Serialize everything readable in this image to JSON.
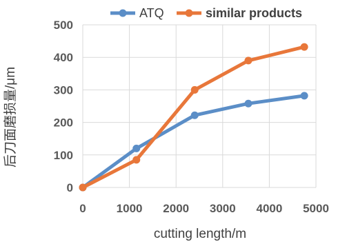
{
  "chart_data": {
    "type": "line",
    "title": "",
    "xlabel": "cutting length/m",
    "ylabel": "后刀面磨损量/μm",
    "xlim": [
      0,
      5000
    ],
    "ylim": [
      0,
      500
    ],
    "xticks": [
      "0",
      "1000",
      "2000",
      "3000",
      "4000",
      "5000"
    ],
    "yticks": [
      "0",
      "100",
      "200",
      "300",
      "400",
      "500"
    ],
    "grid": "both",
    "legend": "top-right",
    "series": [
      {
        "name": "ATQ",
        "color": "#5b8ec7",
        "x": [
          0,
          1150,
          2400,
          3550,
          4750
        ],
        "y": [
          0,
          120,
          222,
          258,
          282
        ]
      },
      {
        "name": "similar products",
        "color": "#e8773a",
        "x": [
          0,
          1150,
          2400,
          3550,
          4750
        ],
        "y": [
          0,
          85,
          300,
          390,
          432
        ]
      }
    ]
  }
}
